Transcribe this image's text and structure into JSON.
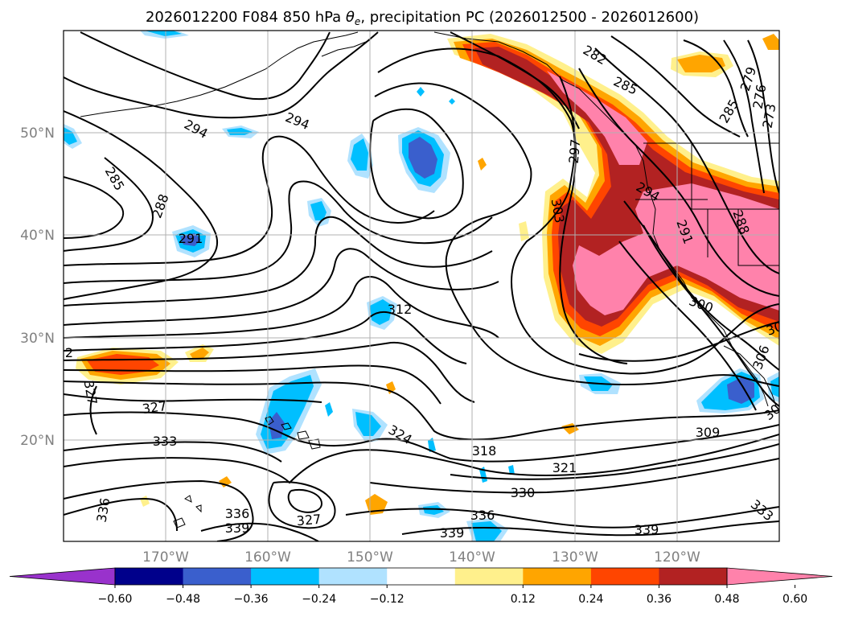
{
  "title_main": "2026012200 F084 850 hPa ",
  "title_symbol": "θ",
  "title_sub": "e",
  "title_rest": ", precipitation PC (2026012500 - 2026012600)",
  "lat_labels": [
    "50°N",
    "40°N",
    "30°N",
    "20°N"
  ],
  "lon_labels": [
    "170°W",
    "160°W",
    "150°W",
    "140°W",
    "130°W",
    "120°W"
  ],
  "contour_labels": [
    "294",
    "294",
    "285",
    "288",
    "291",
    "282",
    "285",
    "279",
    "276",
    "273",
    "285",
    "297",
    "294",
    "303",
    "291",
    "288",
    "312",
    "300",
    "30",
    "327",
    "327",
    "333",
    "324",
    "318",
    "321",
    "330",
    "309",
    "336",
    "336",
    "339",
    "327",
    "336",
    "339",
    "339",
    "333",
    "30",
    "306",
    "2"
  ],
  "colorbar": {
    "ticks": [
      "−0.60",
      "−0.48",
      "−0.36",
      "−0.24",
      "−0.12",
      "0.12",
      "0.24",
      "0.36",
      "0.48",
      "0.60"
    ],
    "colors": [
      "#9932cc",
      "#00008b",
      "#3a5fcd",
      "#00bfff",
      "#b0e2ff",
      "#ffffff",
      "#fff08c",
      "#ffa500",
      "#ff4500",
      "#b22222",
      "#ff82ab"
    ]
  },
  "legend_colors": {
    "neg_light": "#b0e2ff",
    "neg_mid": "#00bfff",
    "neg_dark": "#3a5fcd",
    "pos_yellow": "#fff08c",
    "pos_orange": "#ffa500",
    "pos_red": "#ff4500",
    "pos_darkred": "#b22222",
    "pos_pink": "#ff82ab"
  }
}
